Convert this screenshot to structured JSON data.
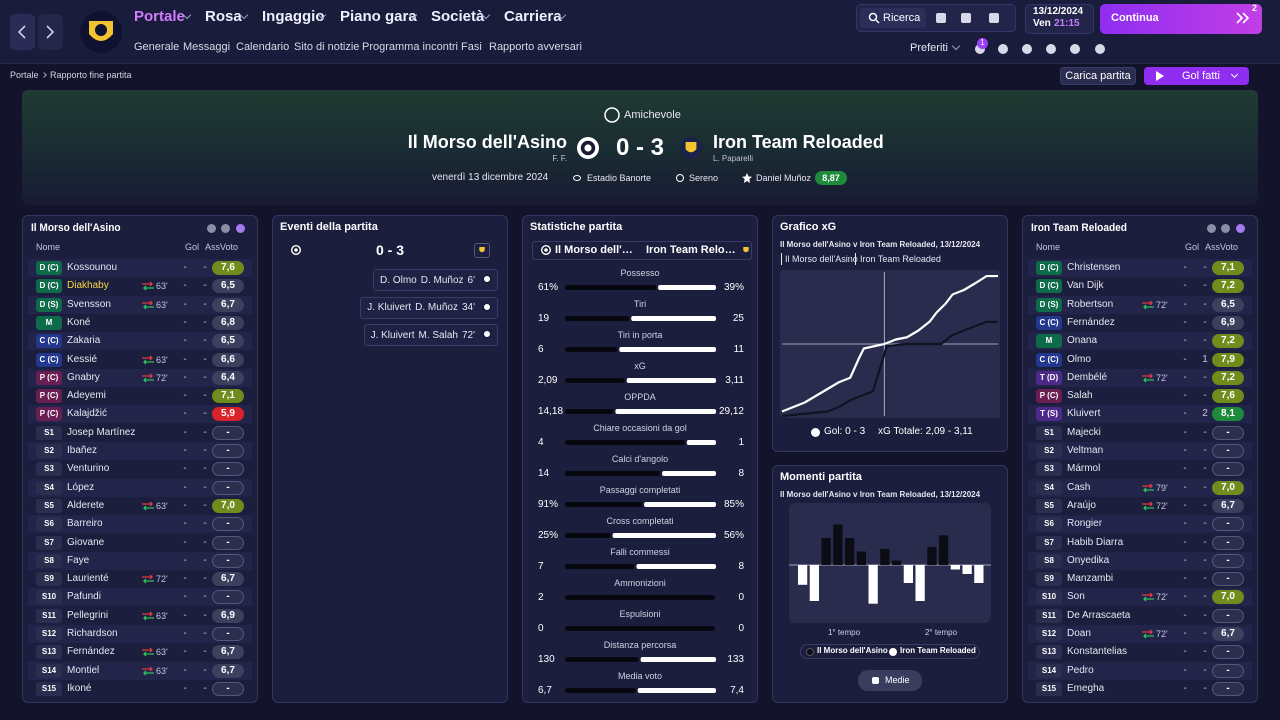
{
  "nav": {
    "menu": [
      "Portale",
      "Rosa",
      "Ingaggio",
      "Piano gara",
      "Società",
      "Carriera"
    ],
    "submenu": [
      "Generale",
      "Messaggi",
      "Calendario",
      "Sito di notizie",
      "Programma incontri",
      "Fasi",
      "Rapporto avversari"
    ],
    "search": "Ricerca",
    "date": "13/12/2024",
    "day": "Ven",
    "time": "21:15",
    "continue": "Continua",
    "inbox_count": "2",
    "favorites": "Preferiti",
    "favorites_badge": "1"
  },
  "breadcrumb": [
    "Portale",
    "Rapporto fine partita"
  ],
  "actions": {
    "load": "Carica partita",
    "goals": "Gol fatti"
  },
  "match": {
    "competition": "Amichevole",
    "home": {
      "name": "Il Morso dell'Asino",
      "manager": "F. F."
    },
    "away": {
      "name": "Iron Team Reloaded",
      "manager": "L. Paparelli"
    },
    "score": "0 - 3",
    "date": "venerdì 13 dicembre 2024",
    "stadium": "Estadio Banorte",
    "weather": "Sereno",
    "referee": "Daniel Muñoz",
    "referee_rating": "8,87"
  },
  "columns": [
    "Nome",
    "Gol",
    "Ass",
    "Voto"
  ],
  "home_team": {
    "rows": [
      {
        "pos": "D (C)",
        "name": "Kossounou",
        "sub": null,
        "gol": "-",
        "ass": "-",
        "voto": "7,6"
      },
      {
        "pos": "D (C)",
        "name": "Diakhaby",
        "sub": "63'",
        "gol": "-",
        "ass": "-",
        "voto": "6,5",
        "highlighted": true
      },
      {
        "pos": "D (S)",
        "name": "Svensson",
        "sub": "63'",
        "gol": "-",
        "ass": "-",
        "voto": "6,7"
      },
      {
        "pos": "M",
        "name": "Koné",
        "sub": null,
        "gol": "-",
        "ass": "-",
        "voto": "6,8"
      },
      {
        "pos": "C (C)",
        "name": "Zakaria",
        "sub": null,
        "gol": "-",
        "ass": "-",
        "voto": "6,5"
      },
      {
        "pos": "C (C)",
        "name": "Kessié",
        "sub": "63'",
        "gol": "-",
        "ass": "-",
        "voto": "6,6"
      },
      {
        "pos": "P (C)",
        "name": "Gnabry",
        "sub": "72'",
        "gol": "-",
        "ass": "-",
        "voto": "6,4"
      },
      {
        "pos": "P (C)",
        "name": "Adeyemi",
        "sub": null,
        "gol": "-",
        "ass": "-",
        "voto": "7,1"
      },
      {
        "pos": "P (C)",
        "name": "Kalajdžić",
        "sub": null,
        "gol": "-",
        "ass": "-",
        "voto": "5,9"
      },
      {
        "pos": "S1",
        "name": "Josep Martínez",
        "sub": null,
        "gol": "-",
        "ass": "-",
        "voto": "-"
      },
      {
        "pos": "S2",
        "name": "Ibañez",
        "sub": null,
        "gol": "-",
        "ass": "-",
        "voto": "-"
      },
      {
        "pos": "S3",
        "name": "Venturino",
        "sub": null,
        "gol": "-",
        "ass": "-",
        "voto": "-"
      },
      {
        "pos": "S4",
        "name": "López",
        "sub": null,
        "gol": "-",
        "ass": "-",
        "voto": "-"
      },
      {
        "pos": "S5",
        "name": "Alderete",
        "sub": "63'",
        "gol": "-",
        "ass": "-",
        "voto": "7,0"
      },
      {
        "pos": "S6",
        "name": "Barreiro",
        "sub": null,
        "gol": "-",
        "ass": "-",
        "voto": "-"
      },
      {
        "pos": "S7",
        "name": "Giovane",
        "sub": null,
        "gol": "-",
        "ass": "-",
        "voto": "-"
      },
      {
        "pos": "S8",
        "name": "Faye",
        "sub": null,
        "gol": "-",
        "ass": "-",
        "voto": "-"
      },
      {
        "pos": "S9",
        "name": "Laurienté",
        "sub": "72'",
        "gol": "-",
        "ass": "-",
        "voto": "6,7"
      },
      {
        "pos": "S10",
        "name": "Pafundi",
        "sub": null,
        "gol": "-",
        "ass": "-",
        "voto": "-"
      },
      {
        "pos": "S11",
        "name": "Pellegrini",
        "sub": "63'",
        "gol": "-",
        "ass": "-",
        "voto": "6,9"
      },
      {
        "pos": "S12",
        "name": "Richardson",
        "sub": null,
        "gol": "-",
        "ass": "-",
        "voto": "-"
      },
      {
        "pos": "S13",
        "name": "Fernández",
        "sub": "63'",
        "gol": "-",
        "ass": "-",
        "voto": "6,7"
      },
      {
        "pos": "S14",
        "name": "Montiel",
        "sub": "63'",
        "gol": "-",
        "ass": "-",
        "voto": "6,7"
      },
      {
        "pos": "S15",
        "name": "Ikoné",
        "sub": null,
        "gol": "-",
        "ass": "-",
        "voto": "-"
      }
    ]
  },
  "away_team": {
    "rows": [
      {
        "pos": "D (C)",
        "name": "Christensen",
        "sub": null,
        "gol": "-",
        "ass": "-",
        "voto": "7,1"
      },
      {
        "pos": "D (C)",
        "name": "Van Dijk",
        "sub": null,
        "gol": "-",
        "ass": "-",
        "voto": "7,2"
      },
      {
        "pos": "D (S)",
        "name": "Robertson",
        "sub": "72'",
        "gol": "-",
        "ass": "-",
        "voto": "6,5"
      },
      {
        "pos": "C (C)",
        "name": "Fernández",
        "sub": null,
        "gol": "-",
        "ass": "-",
        "voto": "6,9"
      },
      {
        "pos": "M",
        "name": "Onana",
        "sub": null,
        "gol": "-",
        "ass": "-",
        "voto": "7,2"
      },
      {
        "pos": "C (C)",
        "name": "Olmo",
        "sub": null,
        "gol": "-",
        "ass": "1",
        "voto": "7,9"
      },
      {
        "pos": "T (D)",
        "name": "Dembélé",
        "sub": "72'",
        "gol": "-",
        "ass": "-",
        "voto": "7,2"
      },
      {
        "pos": "P (C)",
        "name": "Salah",
        "sub": null,
        "gol": "-",
        "ass": "-",
        "voto": "7,6"
      },
      {
        "pos": "T (S)",
        "name": "Kluivert",
        "sub": null,
        "gol": "-",
        "ass": "2",
        "voto": "8,1"
      },
      {
        "pos": "S1",
        "name": "Majecki",
        "sub": null,
        "gol": "-",
        "ass": "-",
        "voto": "-"
      },
      {
        "pos": "S2",
        "name": "Veltman",
        "sub": null,
        "gol": "-",
        "ass": "-",
        "voto": "-"
      },
      {
        "pos": "S3",
        "name": "Mármol",
        "sub": null,
        "gol": "-",
        "ass": "-",
        "voto": "-"
      },
      {
        "pos": "S4",
        "name": "Cash",
        "sub": "79'",
        "gol": "-",
        "ass": "-",
        "voto": "7,0"
      },
      {
        "pos": "S5",
        "name": "Araújo",
        "sub": "72'",
        "gol": "-",
        "ass": "-",
        "voto": "6,7"
      },
      {
        "pos": "S6",
        "name": "Rongier",
        "sub": null,
        "gol": "-",
        "ass": "-",
        "voto": "-"
      },
      {
        "pos": "S7",
        "name": "Habib Diarra",
        "sub": null,
        "gol": "-",
        "ass": "-",
        "voto": "-"
      },
      {
        "pos": "S8",
        "name": "Onyedika",
        "sub": null,
        "gol": "-",
        "ass": "-",
        "voto": "-"
      },
      {
        "pos": "S9",
        "name": "Manzambi",
        "sub": null,
        "gol": "-",
        "ass": "-",
        "voto": "-"
      },
      {
        "pos": "S10",
        "name": "Son",
        "sub": "72'",
        "gol": "-",
        "ass": "-",
        "voto": "7,0"
      },
      {
        "pos": "S11",
        "name": "De Arrascaeta",
        "sub": null,
        "gol": "-",
        "ass": "-",
        "voto": "-"
      },
      {
        "pos": "S12",
        "name": "Doan",
        "sub": "72'",
        "gol": "-",
        "ass": "-",
        "voto": "6,7"
      },
      {
        "pos": "S13",
        "name": "Konstantelias",
        "sub": null,
        "gol": "-",
        "ass": "-",
        "voto": "-"
      },
      {
        "pos": "S14",
        "name": "Pedro",
        "sub": null,
        "gol": "-",
        "ass": "-",
        "voto": "-"
      },
      {
        "pos": "S15",
        "name": "Emegha",
        "sub": null,
        "gol": "-",
        "ass": "-",
        "voto": "-"
      }
    ]
  },
  "events": {
    "title": "Eventi della partita",
    "items": [
      {
        "scorer": "D. Olmo",
        "assist": "D. Muñoz",
        "minute": "6'"
      },
      {
        "scorer": "J. Kluivert",
        "assist": "D. Muñoz",
        "minute": "34'"
      },
      {
        "scorer": "J. Kluivert",
        "assist": "M. Salah",
        "minute": "72'"
      }
    ]
  },
  "stats": {
    "title": "Statistiche partita",
    "rows": [
      {
        "label": "Possesso",
        "home": "61%",
        "away": "39%"
      },
      {
        "label": "Tiri",
        "home": "19",
        "away": "25"
      },
      {
        "label": "Tiri in porta",
        "home": "6",
        "away": "11"
      },
      {
        "label": "xG",
        "home": "2,09",
        "away": "3,11"
      },
      {
        "label": "OPPDA",
        "home": "14,18",
        "away": "29,12"
      },
      {
        "label": "Chiare occasioni da gol",
        "home": "4",
        "away": "1"
      },
      {
        "label": "Calci d'angolo",
        "home": "14",
        "away": "8"
      },
      {
        "label": "Passaggi completati",
        "home": "91%",
        "away": "85%"
      },
      {
        "label": "Cross completati",
        "home": "25%",
        "away": "56%"
      },
      {
        "label": "Falli commessi",
        "home": "7",
        "away": "8"
      },
      {
        "label": "Ammonizioni",
        "home": "2",
        "away": "0"
      },
      {
        "label": "Espulsioni",
        "home": "0",
        "away": "0"
      },
      {
        "label": "Distanza percorsa",
        "home": "130",
        "away": "133"
      },
      {
        "label": "Media voto",
        "home": "6,7",
        "away": "7,4"
      }
    ]
  },
  "xg": {
    "title": "Grafico xG",
    "subtitle": "Il Morso dell'Asino v Iron Team Reloaded, 13/12/2024",
    "xlim": [
      0,
      95
    ],
    "ylim": [
      0,
      3.2
    ],
    "xticks": [
      45
    ],
    "yticks": [
      1.6
    ],
    "series": [
      {
        "name": "Il Morso dell'Asino",
        "color": "#111322",
        "x": [
          0,
          10,
          20,
          25,
          30,
          40,
          44,
          46,
          55,
          60,
          70,
          75,
          80,
          85,
          90,
          95
        ],
        "y": [
          0,
          0.05,
          0.1,
          0.2,
          0.35,
          0.55,
          1.2,
          1.55,
          1.6,
          1.6,
          1.6,
          1.8,
          1.9,
          2.0,
          2.09,
          2.09
        ]
      },
      {
        "name": "Iron Team Reloaded",
        "color": "#ffffff",
        "x": [
          0,
          5,
          10,
          15,
          20,
          25,
          30,
          34,
          36,
          45,
          50,
          55,
          60,
          65,
          68,
          72,
          75,
          80,
          85,
          90,
          95
        ],
        "y": [
          0.1,
          0.2,
          0.3,
          0.45,
          0.6,
          0.75,
          0.85,
          1.3,
          1.5,
          1.6,
          1.7,
          1.75,
          1.9,
          2.1,
          2.3,
          2.5,
          2.7,
          2.8,
          2.95,
          3.11,
          3.11
        ]
      }
    ],
    "goals": "Gol: 0 - 3",
    "total": "xG Totale: 2,09 - 3,11"
  },
  "momentum": {
    "title": "Momenti partita",
    "subtitle": "Il Morso dell'Asino v Iron Team Reloaded, 13/12/2024",
    "ylim": [
      -50,
      50
    ],
    "values": [
      -22,
      -40,
      30,
      45,
      30,
      15,
      -43,
      18,
      5,
      -20,
      -40,
      20,
      33,
      -5,
      -10,
      -20
    ],
    "home_color": "#0b0c14",
    "away_color": "#ffffff",
    "halves": [
      "1° tempo",
      "2° tempo"
    ],
    "legend": [
      "Il Morso dell'Asino",
      "Iron Team Reloaded"
    ],
    "button": "Medie"
  }
}
